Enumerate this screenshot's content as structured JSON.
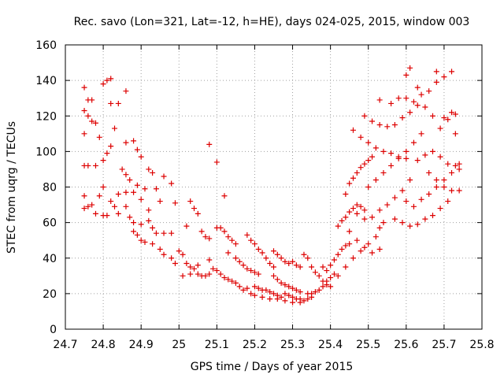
{
  "chart_data": {
    "type": "scatter",
    "title": "Rec. savo (Lon=321, Lat=-12, h=HE), days 024-025, 2015, window 003",
    "xlabel": "GPS time / Days of year 2015",
    "ylabel": "STEC from uqrg / TECUs",
    "xlim": [
      24.7,
      25.8
    ],
    "ylim": [
      0,
      160
    ],
    "xticks": [
      "24.7",
      "24.8",
      "24.9",
      "25",
      "25.1",
      "25.2",
      "25.3",
      "25.4",
      "25.5",
      "25.6",
      "25.7",
      "25.8"
    ],
    "yticks": [
      "0",
      "20",
      "40",
      "60",
      "80",
      "100",
      "120",
      "140",
      "160"
    ],
    "grid": true,
    "legend": "none",
    "marker": "plus",
    "color": "#dd0000",
    "series": [
      {
        "points": [
          [
            24.75,
            136
          ],
          [
            24.76,
            129
          ],
          [
            24.77,
            129
          ],
          [
            24.8,
            138
          ],
          [
            24.81,
            140
          ],
          [
            24.82,
            141
          ],
          [
            24.82,
            127
          ],
          [
            24.84,
            127
          ],
          [
            24.86,
            134
          ],
          [
            24.75,
            123
          ],
          [
            24.76,
            120
          ],
          [
            24.77,
            117
          ],
          [
            24.78,
            116
          ],
          [
            24.79,
            108
          ],
          [
            24.75,
            110
          ],
          [
            24.83,
            113
          ],
          [
            24.86,
            105
          ],
          [
            24.88,
            106
          ],
          [
            24.89,
            101
          ],
          [
            24.9,
            97
          ],
          [
            24.92,
            90
          ],
          [
            24.93,
            88
          ],
          [
            24.96,
            86
          ],
          [
            24.98,
            82
          ],
          [
            24.75,
            92
          ],
          [
            24.76,
            92
          ],
          [
            24.78,
            92
          ],
          [
            24.8,
            95
          ],
          [
            24.81,
            99
          ],
          [
            24.82,
            103
          ],
          [
            24.85,
            90
          ],
          [
            24.86,
            87
          ],
          [
            24.87,
            84
          ],
          [
            24.89,
            81
          ],
          [
            24.91,
            79
          ],
          [
            24.94,
            79
          ],
          [
            24.95,
            72
          ],
          [
            24.99,
            71
          ],
          [
            24.75,
            75
          ],
          [
            24.77,
            70
          ],
          [
            24.79,
            75
          ],
          [
            24.8,
            80
          ],
          [
            24.82,
            72
          ],
          [
            24.84,
            76
          ],
          [
            24.86,
            77
          ],
          [
            24.88,
            77
          ],
          [
            24.9,
            73
          ],
          [
            24.92,
            67
          ],
          [
            24.75,
            68
          ],
          [
            24.76,
            69
          ],
          [
            24.78,
            65
          ],
          [
            24.8,
            64
          ],
          [
            24.81,
            64
          ],
          [
            24.83,
            69
          ],
          [
            24.84,
            65
          ],
          [
            24.86,
            69
          ],
          [
            24.87,
            63
          ],
          [
            24.88,
            60
          ],
          [
            24.9,
            59
          ],
          [
            24.92,
            61
          ],
          [
            24.93,
            57
          ],
          [
            24.94,
            54
          ],
          [
            24.96,
            54
          ],
          [
            24.98,
            54
          ],
          [
            24.88,
            55
          ],
          [
            24.89,
            53
          ],
          [
            24.9,
            50
          ],
          [
            24.91,
            49
          ],
          [
            24.93,
            48
          ],
          [
            24.95,
            45
          ],
          [
            24.96,
            42
          ],
          [
            24.98,
            40
          ],
          [
            24.99,
            37
          ],
          [
            25.0,
            44
          ],
          [
            25.01,
            42
          ],
          [
            25.02,
            58
          ],
          [
            25.03,
            72
          ],
          [
            25.04,
            68
          ],
          [
            25.05,
            65
          ],
          [
            25.06,
            55
          ],
          [
            25.07,
            52
          ],
          [
            25.08,
            51
          ],
          [
            25.02,
            37
          ],
          [
            25.03,
            35
          ],
          [
            25.04,
            34
          ],
          [
            25.05,
            31
          ],
          [
            25.06,
            30
          ],
          [
            25.07,
            30
          ],
          [
            25.08,
            31
          ],
          [
            25.09,
            34
          ],
          [
            25.01,
            30
          ],
          [
            25.03,
            31
          ],
          [
            25.05,
            36
          ],
          [
            25.08,
            39
          ],
          [
            25.1,
            33
          ],
          [
            25.1,
            57
          ],
          [
            25.11,
            57
          ],
          [
            25.12,
            55
          ],
          [
            25.13,
            52
          ],
          [
            25.14,
            50
          ],
          [
            25.15,
            48
          ],
          [
            25.08,
            104
          ],
          [
            25.1,
            94
          ],
          [
            25.12,
            75
          ],
          [
            25.11,
            31
          ],
          [
            25.12,
            29
          ],
          [
            25.13,
            28
          ],
          [
            25.14,
            27
          ],
          [
            25.15,
            26
          ],
          [
            25.16,
            24
          ],
          [
            25.17,
            22
          ],
          [
            25.18,
            23
          ],
          [
            25.13,
            43
          ],
          [
            25.15,
            40
          ],
          [
            25.16,
            38
          ],
          [
            25.17,
            36
          ],
          [
            25.18,
            34
          ],
          [
            25.19,
            33
          ],
          [
            25.2,
            32
          ],
          [
            25.21,
            31
          ],
          [
            25.18,
            53
          ],
          [
            25.19,
            50
          ],
          [
            25.2,
            48
          ],
          [
            25.21,
            45
          ],
          [
            25.22,
            43
          ],
          [
            25.23,
            40
          ],
          [
            25.24,
            37
          ],
          [
            25.25,
            35
          ],
          [
            25.2,
            24
          ],
          [
            25.21,
            23
          ],
          [
            25.22,
            22
          ],
          [
            25.23,
            22
          ],
          [
            25.24,
            21
          ],
          [
            25.25,
            20
          ],
          [
            25.26,
            19
          ],
          [
            25.27,
            18
          ],
          [
            25.19,
            20
          ],
          [
            25.2,
            19
          ],
          [
            25.22,
            18
          ],
          [
            25.24,
            17
          ],
          [
            25.26,
            17
          ],
          [
            25.28,
            16
          ],
          [
            25.3,
            15
          ],
          [
            25.32,
            15
          ],
          [
            25.25,
            44
          ],
          [
            25.26,
            42
          ],
          [
            25.27,
            40
          ],
          [
            25.28,
            38
          ],
          [
            25.29,
            37
          ],
          [
            25.3,
            38
          ],
          [
            25.31,
            36
          ],
          [
            25.32,
            35
          ],
          [
            25.25,
            30
          ],
          [
            25.26,
            28
          ],
          [
            25.27,
            26
          ],
          [
            25.28,
            25
          ],
          [
            25.29,
            24
          ],
          [
            25.3,
            23
          ],
          [
            25.31,
            22
          ],
          [
            25.32,
            21
          ],
          [
            25.28,
            20
          ],
          [
            25.29,
            19
          ],
          [
            25.3,
            18
          ],
          [
            25.31,
            17
          ],
          [
            25.32,
            17
          ],
          [
            25.33,
            16
          ],
          [
            25.34,
            17
          ],
          [
            25.35,
            18
          ],
          [
            25.33,
            42
          ],
          [
            25.34,
            40
          ],
          [
            25.35,
            35
          ],
          [
            25.36,
            32
          ],
          [
            25.37,
            30
          ],
          [
            25.38,
            27
          ],
          [
            25.39,
            25
          ],
          [
            25.4,
            24
          ],
          [
            25.34,
            20
          ],
          [
            25.35,
            20
          ],
          [
            25.36,
            21
          ],
          [
            25.37,
            22
          ],
          [
            25.38,
            24
          ],
          [
            25.39,
            27
          ],
          [
            25.4,
            29
          ],
          [
            25.41,
            31
          ],
          [
            25.38,
            35
          ],
          [
            25.39,
            33
          ],
          [
            25.4,
            36
          ],
          [
            25.41,
            39
          ],
          [
            25.42,
            42
          ],
          [
            25.43,
            45
          ],
          [
            25.44,
            47
          ],
          [
            25.45,
            48
          ],
          [
            25.42,
            58
          ],
          [
            25.43,
            61
          ],
          [
            25.44,
            63
          ],
          [
            25.45,
            66
          ],
          [
            25.46,
            68
          ],
          [
            25.47,
            70
          ],
          [
            25.48,
            69
          ],
          [
            25.49,
            67
          ],
          [
            25.44,
            76
          ],
          [
            25.45,
            82
          ],
          [
            25.46,
            85
          ],
          [
            25.47,
            88
          ],
          [
            25.48,
            91
          ],
          [
            25.49,
            93
          ],
          [
            25.5,
            95
          ],
          [
            25.51,
            97
          ],
          [
            25.42,
            30
          ],
          [
            25.44,
            35
          ],
          [
            25.46,
            40
          ],
          [
            25.48,
            44
          ],
          [
            25.5,
            48
          ],
          [
            25.52,
            52
          ],
          [
            25.53,
            57
          ],
          [
            25.54,
            60
          ],
          [
            25.45,
            55
          ],
          [
            25.47,
            50
          ],
          [
            25.49,
            46
          ],
          [
            25.51,
            43
          ],
          [
            25.53,
            45
          ],
          [
            25.47,
            65
          ],
          [
            25.49,
            62
          ],
          [
            25.51,
            63
          ],
          [
            25.53,
            67
          ],
          [
            25.55,
            70
          ],
          [
            25.57,
            74
          ],
          [
            25.59,
            78
          ],
          [
            25.61,
            84
          ],
          [
            25.5,
            80
          ],
          [
            25.52,
            84
          ],
          [
            25.54,
            88
          ],
          [
            25.56,
            92
          ],
          [
            25.58,
            96
          ],
          [
            25.6,
            100
          ],
          [
            25.62,
            105
          ],
          [
            25.64,
            110
          ],
          [
            25.46,
            112
          ],
          [
            25.48,
            108
          ],
          [
            25.5,
            105
          ],
          [
            25.52,
            102
          ],
          [
            25.54,
            100
          ],
          [
            25.56,
            99
          ],
          [
            25.58,
            97
          ],
          [
            25.6,
            96
          ],
          [
            25.49,
            120
          ],
          [
            25.51,
            117
          ],
          [
            25.53,
            115
          ],
          [
            25.55,
            114
          ],
          [
            25.57,
            115
          ],
          [
            25.59,
            119
          ],
          [
            25.61,
            122
          ],
          [
            25.63,
            126
          ],
          [
            25.53,
            129
          ],
          [
            25.56,
            127
          ],
          [
            25.58,
            130
          ],
          [
            25.6,
            130
          ],
          [
            25.62,
            128
          ],
          [
            25.64,
            132
          ],
          [
            25.66,
            134
          ],
          [
            25.68,
            139
          ],
          [
            25.6,
            143
          ],
          [
            25.61,
            147
          ],
          [
            25.63,
            136
          ],
          [
            25.65,
            125
          ],
          [
            25.67,
            120
          ],
          [
            25.69,
            113
          ],
          [
            25.7,
            119
          ],
          [
            25.72,
            122
          ],
          [
            25.73,
            121
          ],
          [
            25.68,
            145
          ],
          [
            25.7,
            142
          ],
          [
            25.72,
            145
          ],
          [
            25.71,
            118
          ],
          [
            25.73,
            110
          ],
          [
            25.57,
            62
          ],
          [
            25.59,
            60
          ],
          [
            25.61,
            58
          ],
          [
            25.63,
            59
          ],
          [
            25.65,
            62
          ],
          [
            25.67,
            64
          ],
          [
            25.69,
            68
          ],
          [
            25.71,
            72
          ],
          [
            25.6,
            72
          ],
          [
            25.62,
            69
          ],
          [
            25.64,
            73
          ],
          [
            25.66,
            76
          ],
          [
            25.68,
            80
          ],
          [
            25.7,
            84
          ],
          [
            25.72,
            88
          ],
          [
            25.74,
            90
          ],
          [
            25.63,
            95
          ],
          [
            25.65,
            98
          ],
          [
            25.67,
            100
          ],
          [
            25.69,
            97
          ],
          [
            25.71,
            93
          ],
          [
            25.73,
            92
          ],
          [
            25.74,
            93
          ],
          [
            25.66,
            88
          ],
          [
            25.68,
            84
          ],
          [
            25.7,
            80
          ],
          [
            25.72,
            78
          ],
          [
            25.74,
            78
          ]
        ]
      }
    ]
  }
}
